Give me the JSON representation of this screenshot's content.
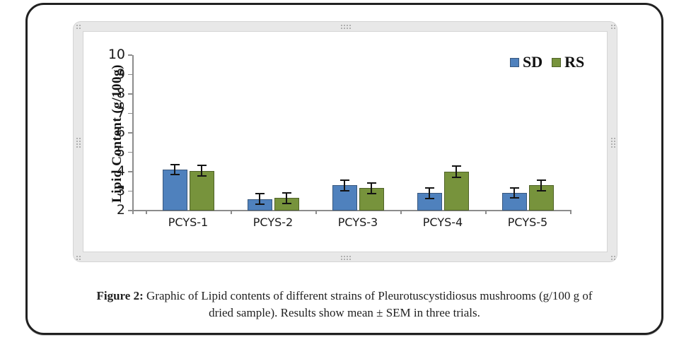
{
  "figure": {
    "caption_label": "Figure 2:",
    "caption_text": "Graphic of Lipid contents of different strains of Pleurotuscystidiosus mushrooms (g/100 g of dried sample). Results show mean ± SEM in three trials."
  },
  "chart_data": {
    "type": "bar",
    "title": "",
    "xlabel": "",
    "ylabel": "Lipid Content (g/100g)",
    "ylim": [
      2,
      10
    ],
    "yticks": [
      2,
      3,
      4,
      5,
      6,
      7,
      8,
      9,
      10
    ],
    "grid": false,
    "error_bars": true,
    "legend_position": "top-right",
    "categories": [
      "PCYS-1",
      "PCYS-2",
      "PCYS-3",
      "PCYS-4",
      "PCYS-5"
    ],
    "series": [
      {
        "name": "SD",
        "color": "#4F81BD",
        "border_color": "#38577D",
        "values": [
          4.1,
          2.6,
          3.3,
          2.9,
          2.9
        ],
        "errors": [
          0.25,
          0.26,
          0.28,
          0.27,
          0.25
        ]
      },
      {
        "name": "RS",
        "color": "#77933C",
        "border_color": "#4F6228",
        "values": [
          4.05,
          2.65,
          3.15,
          4.0,
          3.3
        ],
        "errors": [
          0.28,
          0.27,
          0.27,
          0.28,
          0.27
        ]
      }
    ],
    "axis_color": "#8C8C8C",
    "text_color": "#1A1A1A"
  }
}
